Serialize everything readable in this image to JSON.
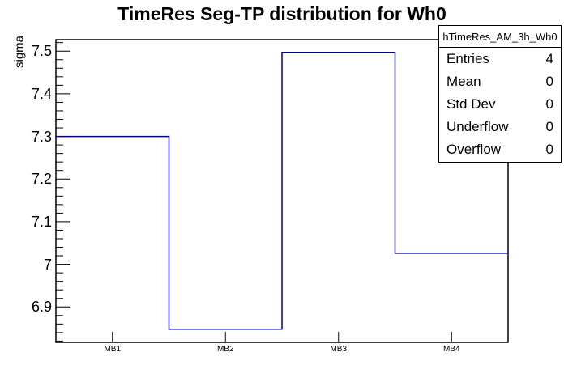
{
  "title": "TimeRes Seg-TP distribution for Wh0",
  "chart_data": {
    "type": "bar",
    "style": "step-histogram-outline",
    "categories": [
      "MB1",
      "MB2",
      "MB3",
      "MB4"
    ],
    "values": [
      7.3,
      6.848,
      7.497,
      7.026
    ],
    "title": "TimeRes Seg-TP distribution for Wh0",
    "xlabel": "",
    "ylabel": "sigma",
    "ylim": [
      6.817,
      7.527
    ],
    "y_tick_labels": [
      "6.9",
      "7",
      "7.1",
      "7.2",
      "7.3",
      "7.4",
      "7.5"
    ],
    "y_major_tick_step": 0.1,
    "y_minor_tick_step": 0.02,
    "grid": false,
    "legend_position": "none",
    "line_color": "#000099",
    "frame_color": "#000000"
  },
  "stats_box": {
    "title": "hTimeRes_AM_3h_Wh0",
    "rows": [
      {
        "label": "Entries",
        "value": "4"
      },
      {
        "label": "Mean",
        "value": "0"
      },
      {
        "label": "Std Dev",
        "value": "0"
      },
      {
        "label": "Underflow",
        "value": "0"
      },
      {
        "label": "Overflow",
        "value": "0"
      }
    ]
  }
}
